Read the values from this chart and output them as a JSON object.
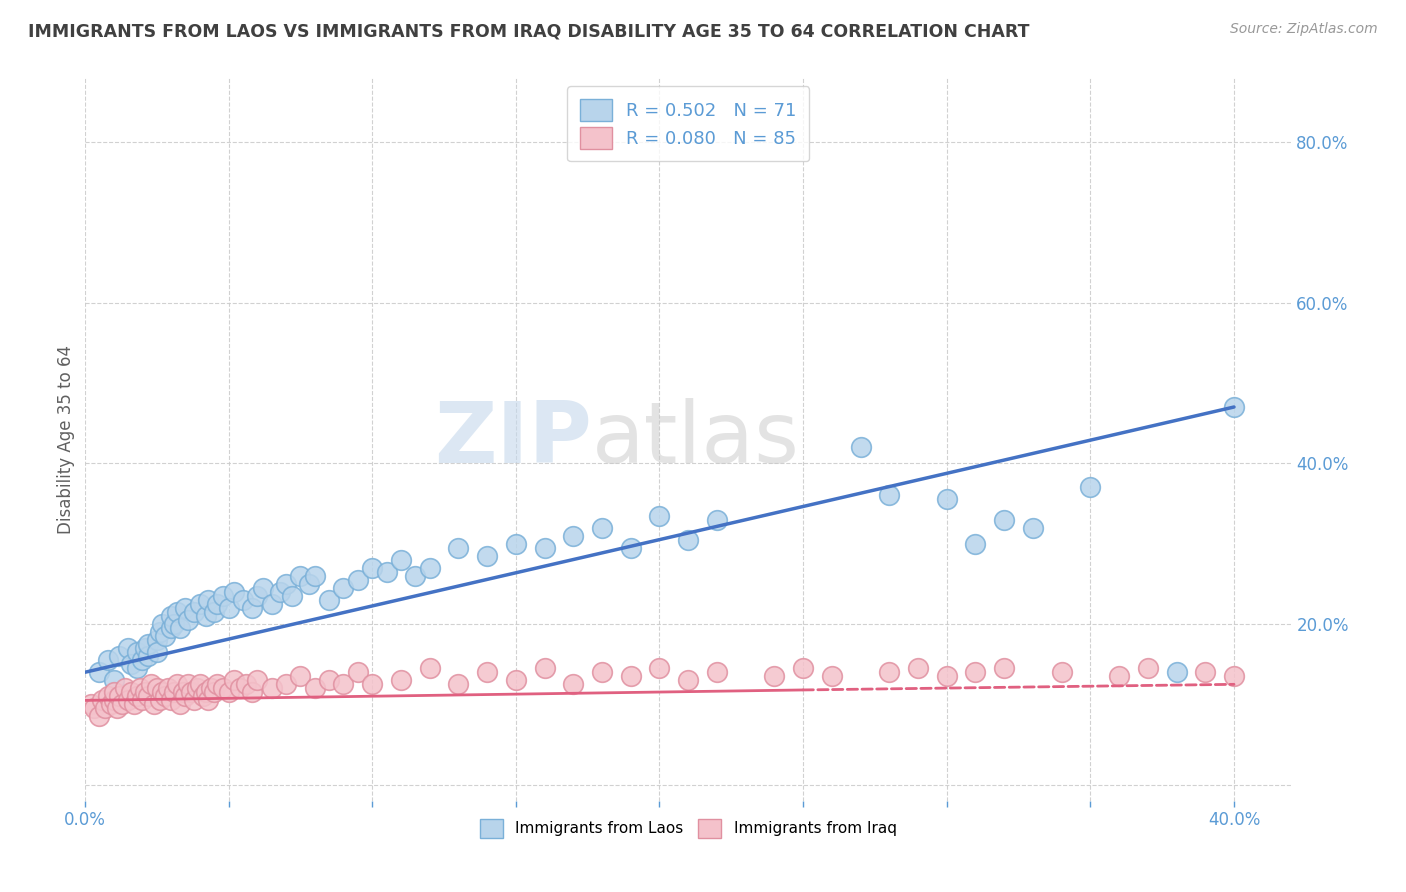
{
  "title": "IMMIGRANTS FROM LAOS VS IMMIGRANTS FROM IRAQ DISABILITY AGE 35 TO 64 CORRELATION CHART",
  "source": "Source: ZipAtlas.com",
  "ylabel": "Disability Age 35 to 64",
  "xlim": [
    0.0,
    0.42
  ],
  "ylim": [
    -0.02,
    0.88
  ],
  "xticks": [
    0.0,
    0.05,
    0.1,
    0.15,
    0.2,
    0.25,
    0.3,
    0.35,
    0.4
  ],
  "yticks": [
    0.0,
    0.2,
    0.4,
    0.6,
    0.8
  ],
  "series": [
    {
      "name": "Immigrants from Laos",
      "R": 0.502,
      "N": 71,
      "patch_color": "#b8d4eb",
      "patch_edge": "#7ab0d8",
      "line_color": "#4472c4",
      "x": [
        0.005,
        0.008,
        0.01,
        0.012,
        0.015,
        0.016,
        0.018,
        0.018,
        0.02,
        0.021,
        0.022,
        0.022,
        0.025,
        0.025,
        0.026,
        0.027,
        0.028,
        0.03,
        0.03,
        0.031,
        0.032,
        0.033,
        0.035,
        0.036,
        0.038,
        0.04,
        0.042,
        0.043,
        0.045,
        0.046,
        0.048,
        0.05,
        0.052,
        0.055,
        0.058,
        0.06,
        0.062,
        0.065,
        0.068,
        0.07,
        0.072,
        0.075,
        0.078,
        0.08,
        0.085,
        0.09,
        0.095,
        0.1,
        0.105,
        0.11,
        0.115,
        0.12,
        0.13,
        0.14,
        0.15,
        0.16,
        0.17,
        0.18,
        0.19,
        0.2,
        0.21,
        0.22,
        0.27,
        0.28,
        0.3,
        0.31,
        0.32,
        0.33,
        0.35,
        0.38,
        0.4
      ],
      "y": [
        0.14,
        0.155,
        0.13,
        0.16,
        0.17,
        0.15,
        0.145,
        0.165,
        0.155,
        0.17,
        0.16,
        0.175,
        0.18,
        0.165,
        0.19,
        0.2,
        0.185,
        0.195,
        0.21,
        0.2,
        0.215,
        0.195,
        0.22,
        0.205,
        0.215,
        0.225,
        0.21,
        0.23,
        0.215,
        0.225,
        0.235,
        0.22,
        0.24,
        0.23,
        0.22,
        0.235,
        0.245,
        0.225,
        0.24,
        0.25,
        0.235,
        0.26,
        0.25,
        0.26,
        0.23,
        0.245,
        0.255,
        0.27,
        0.265,
        0.28,
        0.26,
        0.27,
        0.295,
        0.285,
        0.3,
        0.295,
        0.31,
        0.32,
        0.295,
        0.335,
        0.305,
        0.33,
        0.42,
        0.36,
        0.355,
        0.3,
        0.33,
        0.32,
        0.37,
        0.14,
        0.47
      ],
      "trend_x": [
        0.0,
        0.4
      ],
      "trend_y": [
        0.14,
        0.47
      ],
      "trend_solid": true
    },
    {
      "name": "Immigrants from Iraq",
      "R": 0.08,
      "N": 85,
      "patch_color": "#f4c2cb",
      "patch_edge": "#e090a0",
      "line_color": "#e06080",
      "x": [
        0.002,
        0.003,
        0.005,
        0.006,
        0.007,
        0.008,
        0.009,
        0.01,
        0.01,
        0.011,
        0.012,
        0.013,
        0.014,
        0.015,
        0.016,
        0.017,
        0.018,
        0.019,
        0.02,
        0.021,
        0.022,
        0.023,
        0.024,
        0.025,
        0.026,
        0.027,
        0.028,
        0.029,
        0.03,
        0.031,
        0.032,
        0.033,
        0.034,
        0.035,
        0.036,
        0.037,
        0.038,
        0.039,
        0.04,
        0.041,
        0.042,
        0.043,
        0.044,
        0.045,
        0.046,
        0.048,
        0.05,
        0.052,
        0.054,
        0.056,
        0.058,
        0.06,
        0.065,
        0.07,
        0.075,
        0.08,
        0.085,
        0.09,
        0.095,
        0.1,
        0.11,
        0.12,
        0.13,
        0.14,
        0.15,
        0.16,
        0.17,
        0.18,
        0.19,
        0.2,
        0.21,
        0.22,
        0.24,
        0.25,
        0.26,
        0.28,
        0.29,
        0.3,
        0.31,
        0.32,
        0.34,
        0.36,
        0.37,
        0.39,
        0.4
      ],
      "y": [
        0.1,
        0.095,
        0.085,
        0.105,
        0.095,
        0.11,
        0.1,
        0.105,
        0.115,
        0.095,
        0.11,
        0.1,
        0.12,
        0.105,
        0.115,
        0.1,
        0.11,
        0.12,
        0.105,
        0.115,
        0.11,
        0.125,
        0.1,
        0.12,
        0.105,
        0.115,
        0.11,
        0.12,
        0.105,
        0.115,
        0.125,
        0.1,
        0.115,
        0.11,
        0.125,
        0.115,
        0.105,
        0.12,
        0.125,
        0.11,
        0.115,
        0.105,
        0.12,
        0.115,
        0.125,
        0.12,
        0.115,
        0.13,
        0.12,
        0.125,
        0.115,
        0.13,
        0.12,
        0.125,
        0.135,
        0.12,
        0.13,
        0.125,
        0.14,
        0.125,
        0.13,
        0.145,
        0.125,
        0.14,
        0.13,
        0.145,
        0.125,
        0.14,
        0.135,
        0.145,
        0.13,
        0.14,
        0.135,
        0.145,
        0.135,
        0.14,
        0.145,
        0.135,
        0.14,
        0.145,
        0.14,
        0.135,
        0.145,
        0.14,
        0.135
      ],
      "trend_x": [
        0.0,
        0.25,
        0.4
      ],
      "trend_y": [
        0.105,
        0.118,
        0.125
      ],
      "trend_solid": false
    }
  ],
  "watermark_zip": "ZIP",
  "watermark_atlas": "atlas",
  "bg_color": "#ffffff",
  "grid_color": "#cccccc",
  "title_color": "#404040",
  "axis_label_color": "#606060",
  "tick_color": "#5b9bd5",
  "legend_color": "#5b9bd5"
}
